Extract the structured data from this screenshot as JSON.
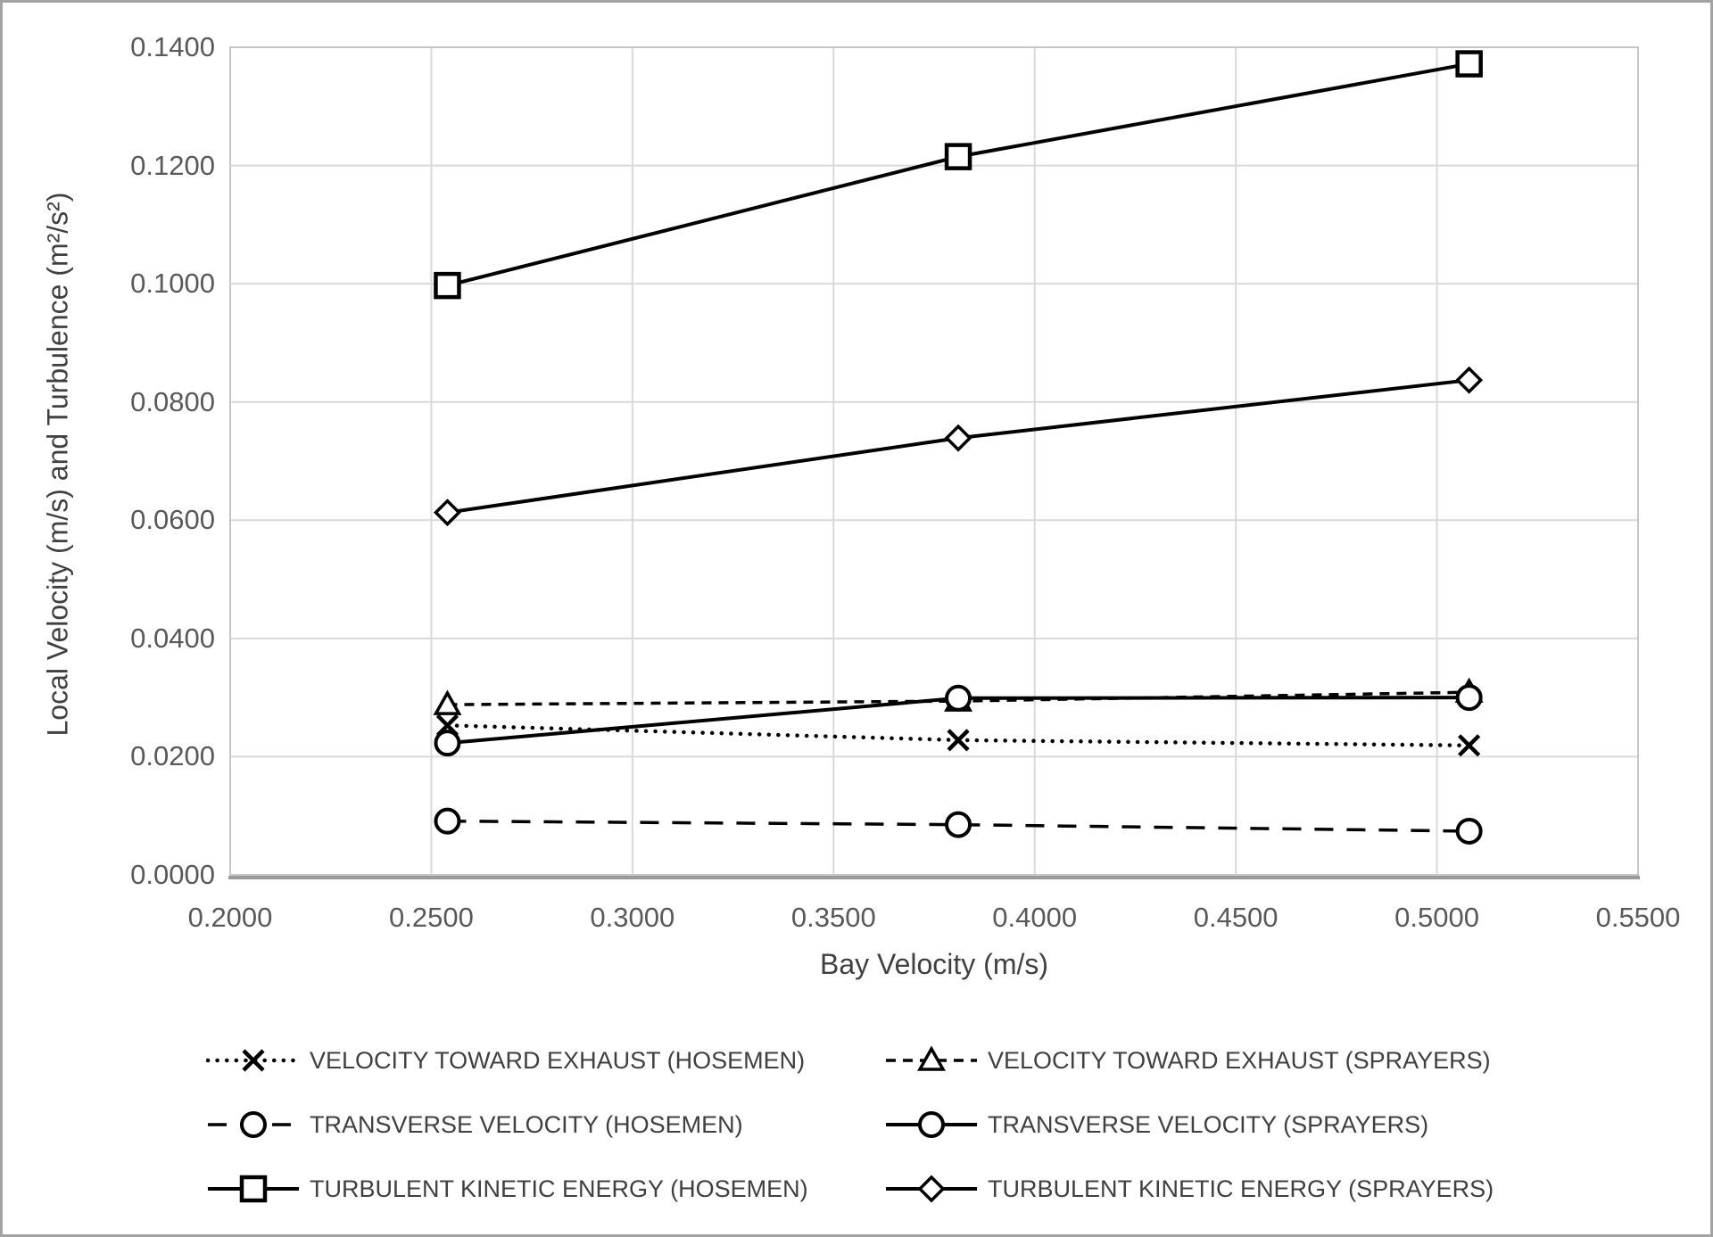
{
  "chart_data": {
    "type": "line",
    "title": "",
    "xlabel": "Bay Velocity (m/s)",
    "ylabel": "Local Velocity (m/s) and Turbulence (m²/s²)",
    "xlim": [
      0.2,
      0.55
    ],
    "ylim": [
      0.0,
      0.14
    ],
    "x_ticks": [
      "0.2000",
      "0.2500",
      "0.3000",
      "0.3500",
      "0.4000",
      "0.4500",
      "0.5000",
      "0.5500"
    ],
    "y_ticks": [
      "0.0000",
      "0.0200",
      "0.0400",
      "0.0600",
      "0.0800",
      "0.1000",
      "0.1200",
      "0.1400"
    ],
    "grid": true,
    "legend_position": "bottom",
    "x": [
      0.254,
      0.381,
      0.508
    ],
    "series": [
      {
        "name": "VELOCITY TOWARD EXHAUST (HOSEMEN)",
        "marker": "x",
        "line": "dotted",
        "values": [
          0.0253,
          0.0228,
          0.0219
        ]
      },
      {
        "name": "VELOCITY TOWARD EXHAUST (SPRAYERS)",
        "marker": "triangle",
        "line": "dashed",
        "values": [
          0.0288,
          0.0294,
          0.0309
        ]
      },
      {
        "name": "TRANSVERSE VELOCITY (HOSEMEN)",
        "marker": "circle",
        "line": "longdash",
        "values": [
          0.0091,
          0.0085,
          0.0074
        ]
      },
      {
        "name": "TRANSVERSE VELOCITY (SPRAYERS)",
        "marker": "circle",
        "line": "solid",
        "values": [
          0.0223,
          0.0299,
          0.03
        ]
      },
      {
        "name": "TURBULENT KINETIC ENERGY (HOSEMEN)",
        "marker": "square",
        "line": "solid",
        "values": [
          0.0997,
          0.1215,
          0.1372
        ]
      },
      {
        "name": "TURBULENT KINETIC ENERGY (SPRAYERS)",
        "marker": "diamond",
        "line": "solid",
        "values": [
          0.0613,
          0.0739,
          0.0837
        ]
      }
    ],
    "colors": {
      "series": "#000000",
      "grid": "#d9d9d9",
      "plot_border": "#c6c6c6",
      "axis_line": "#9b9b9b",
      "axis_text": "#595959",
      "title_text": "#404040"
    }
  }
}
